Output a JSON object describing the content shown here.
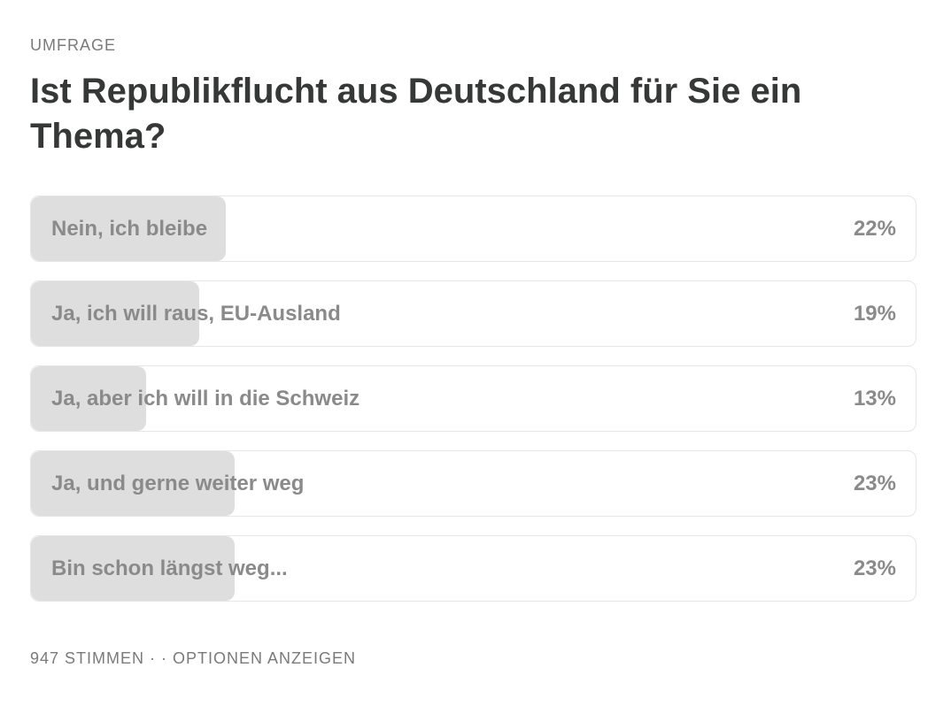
{
  "poll": {
    "eyebrow": "UMFRAGE",
    "question": "Ist Republikflucht aus Deutschland für Sie ein Thema?",
    "options": [
      {
        "label": "Nein, ich bleibe",
        "percent_text": "22%",
        "percent": 22
      },
      {
        "label": "Ja, ich will raus, EU-Ausland",
        "percent_text": "19%",
        "percent": 19
      },
      {
        "label": "Ja, aber ich will in die Schweiz",
        "percent_text": "13%",
        "percent": 13
      },
      {
        "label": "Ja, und gerne weiter weg",
        "percent_text": "23%",
        "percent": 23
      },
      {
        "label": "Bin schon längst weg...",
        "percent_text": "23%",
        "percent": 23
      }
    ],
    "footer": {
      "votes": "947 STIMMEN",
      "separator": " · · ",
      "show_options": "OPTIONEN ANZEIGEN"
    }
  },
  "colors": {
    "text_primary": "#363737",
    "text_muted": "#8a8a8a",
    "bar_fill": "#dedede",
    "border": "#e6e6e6"
  }
}
